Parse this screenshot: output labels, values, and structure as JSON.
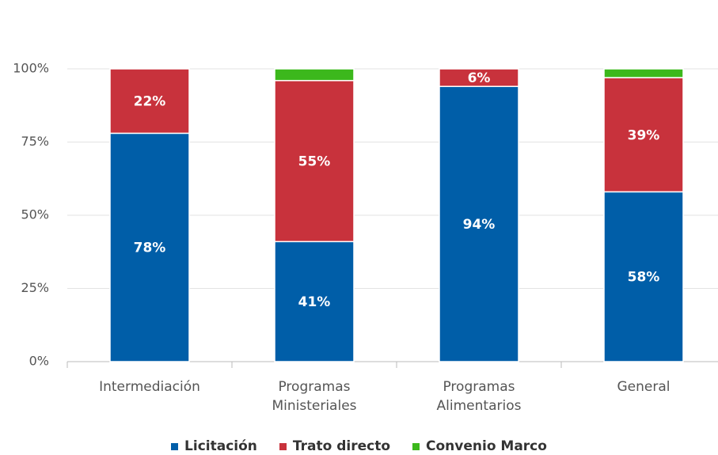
{
  "chart_data": {
    "type": "bar",
    "categories": [
      "Intermediación",
      "Programas Ministeriales",
      "Programas Alimentarios",
      "General"
    ],
    "series": [
      {
        "name": "Licitación",
        "color": "#005ea8",
        "values": [
          78,
          41,
          94,
          58
        ],
        "value_labels": [
          "78%",
          "41%",
          "94%",
          "58%"
        ]
      },
      {
        "name": "Trato directo",
        "color": "#c8323c",
        "values": [
          22,
          55,
          6,
          39
        ],
        "value_labels": [
          "22%",
          "55%",
          "6%",
          "39%"
        ]
      },
      {
        "name": "Convenio Marco",
        "color": "#3cb81c",
        "values": [
          0,
          4,
          0,
          3
        ]
      }
    ],
    "ylim": [
      0,
      100
    ],
    "yticks": [
      {
        "value": 0,
        "label": "0%"
      },
      {
        "value": 25,
        "label": "25%"
      },
      {
        "value": 50,
        "label": "50%"
      },
      {
        "value": 75,
        "label": "75%"
      },
      {
        "value": 100,
        "label": "100%"
      }
    ],
    "grid": true,
    "stacked": true,
    "legend": "bottom"
  }
}
